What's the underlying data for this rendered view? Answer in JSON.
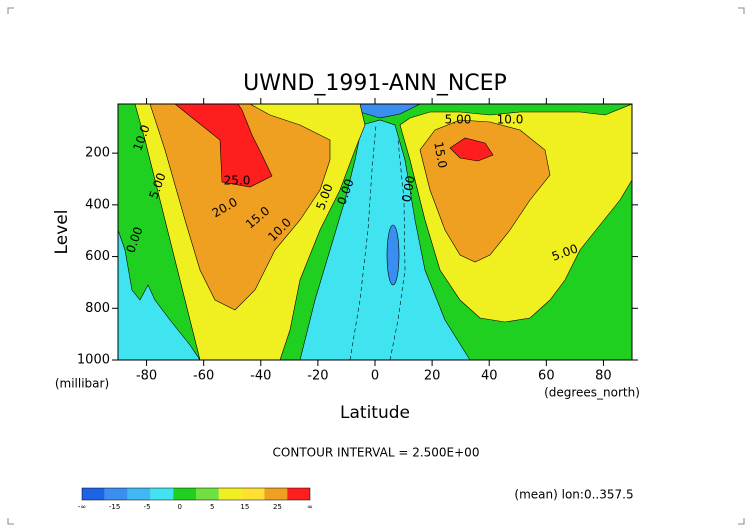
{
  "chart_data": {
    "type": "contour",
    "title": "UWND_1991-ANN_NCEP",
    "x_label": "Latitude",
    "x_units": "(degrees_north)",
    "y_label": "Level",
    "y_units": "(millibar)",
    "xlim": [
      -90,
      90
    ],
    "xticks": [
      -80,
      -60,
      -40,
      -20,
      0,
      20,
      40,
      60,
      80
    ],
    "ylim": [
      1000,
      10
    ],
    "yticks": [
      200,
      400,
      600,
      800,
      1000
    ],
    "contour_labels": [
      "10.0",
      "5.00",
      "0.00",
      "25.0",
      "20.0",
      "15.0",
      "10.0",
      "5.00",
      "0.00",
      "0.00",
      "5.00",
      "10.0",
      "15.0",
      "5.00"
    ],
    "interval_note": "CONTOUR INTERVAL = 2.500E+00",
    "mean_note": "(mean) lon:0..357.5",
    "colorbar": {
      "colors": [
        "#1e64e6",
        "#3a8ef0",
        "#40b8f5",
        "#40e4f0",
        "#20d020",
        "#70e040",
        "#f0f020",
        "#ffe030",
        "#f0a020",
        "#ff1e1e"
      ],
      "labels": [
        "-∞",
        "-15",
        "-5",
        "0",
        "5",
        "15",
        "25",
        "∞"
      ]
    }
  }
}
